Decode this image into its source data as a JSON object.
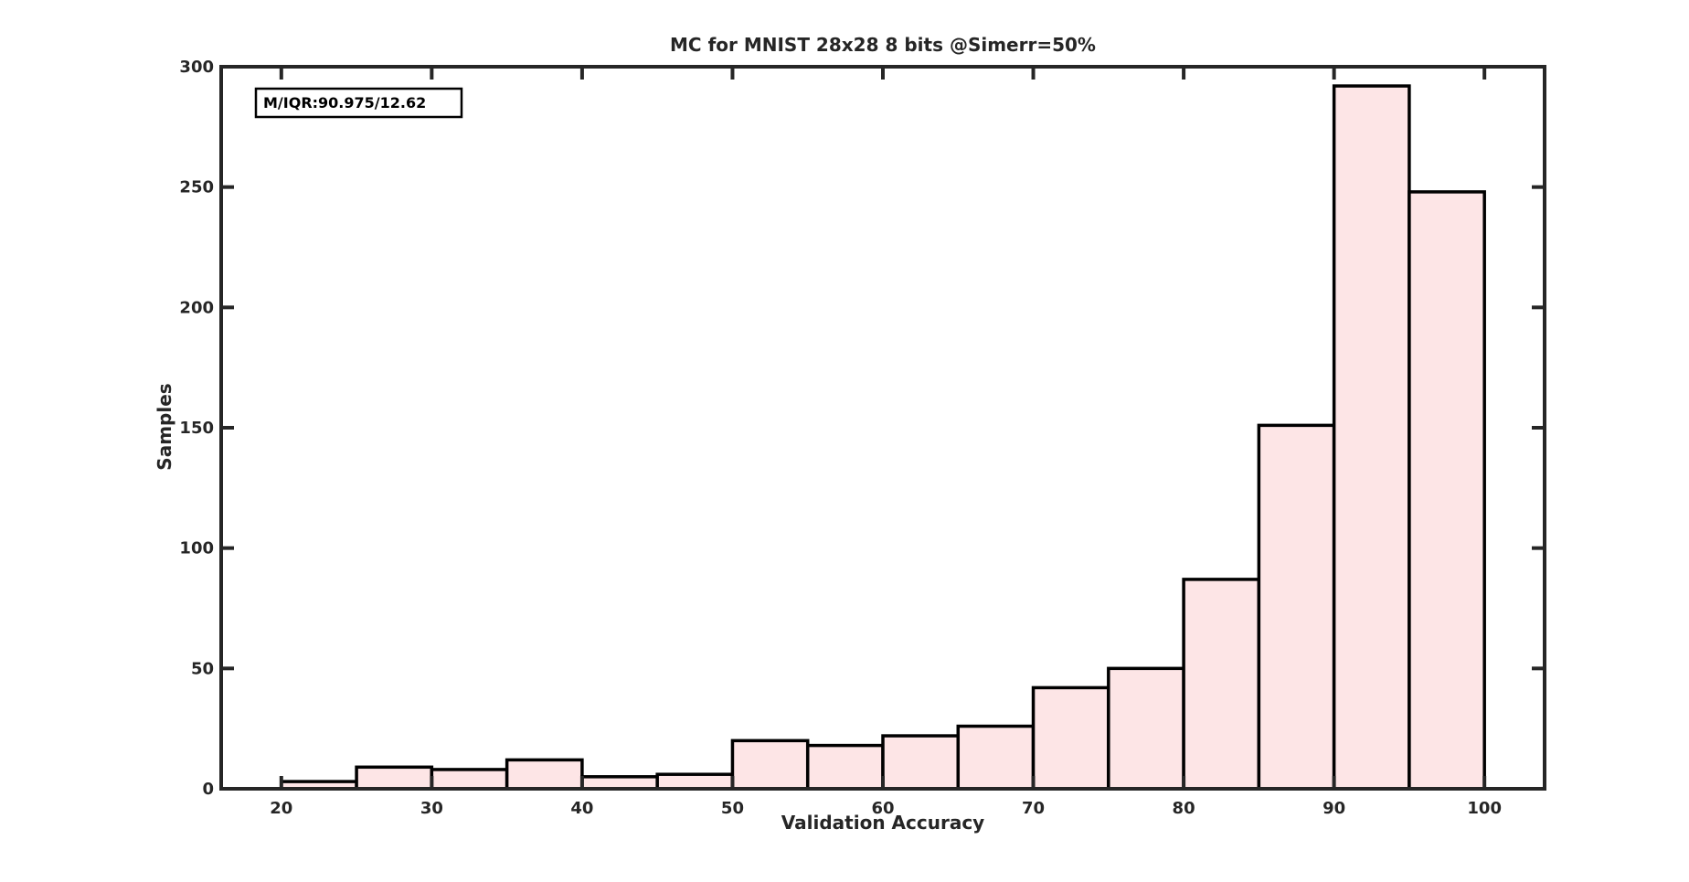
{
  "chart_data": {
    "type": "bar",
    "title": "MC for MNIST 28x28 8 bits @Simerr=50%",
    "xlabel": "Validation Accuracy",
    "ylabel": "Samples",
    "annotation": "M/IQR:90.975/12.62",
    "xlim": [
      16,
      104
    ],
    "ylim": [
      0,
      300
    ],
    "xticks": [
      20,
      30,
      40,
      50,
      60,
      70,
      80,
      90,
      100
    ],
    "yticks": [
      0,
      50,
      100,
      150,
      200,
      250,
      300
    ],
    "grid": false,
    "bin_edges": [
      20,
      25,
      30,
      35,
      40,
      45,
      50,
      55,
      60,
      65,
      70,
      75,
      80,
      85,
      90,
      95,
      100
    ],
    "values": [
      3,
      9,
      8,
      12,
      5,
      6,
      20,
      18,
      22,
      26,
      42,
      50,
      87,
      151,
      292,
      248
    ],
    "bar_color": "#fde5e6",
    "edge_color": "#000000",
    "axis_color": "#262626"
  }
}
